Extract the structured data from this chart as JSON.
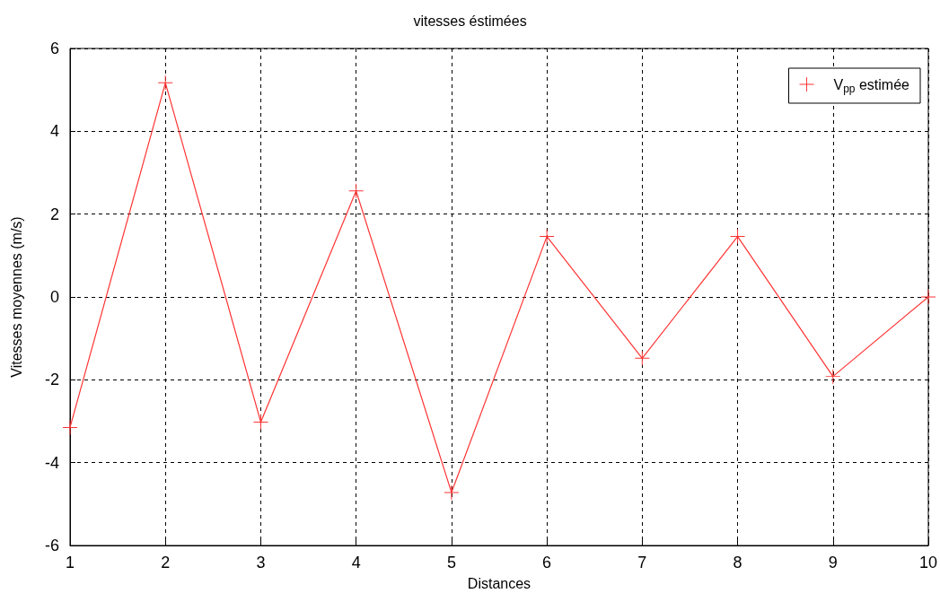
{
  "chart_data": {
    "type": "line",
    "title": "vitesses éstimées",
    "xlabel": "Distances",
    "ylabel": "Vitesses moyennes (m/s)",
    "x": [
      1,
      2,
      3,
      4,
      5,
      6,
      7,
      8,
      9,
      10
    ],
    "series": [
      {
        "name": "V$_{pp}$ estimée",
        "color": "#ff3333",
        "values": [
          -3.15,
          5.17,
          -3.02,
          2.56,
          -4.72,
          1.46,
          -1.48,
          1.46,
          -1.92,
          0
        ]
      }
    ],
    "xlim": [
      1,
      10
    ],
    "xticks": [
      1,
      2,
      3,
      4,
      5,
      6,
      7,
      8,
      9,
      10
    ],
    "ylim": [
      -6,
      6
    ],
    "yticks": [
      -6,
      -4,
      -2,
      0,
      2,
      4,
      6
    ],
    "grid": true,
    "legend": "top right",
    "marker": "cross",
    "line_style": "solid"
  }
}
